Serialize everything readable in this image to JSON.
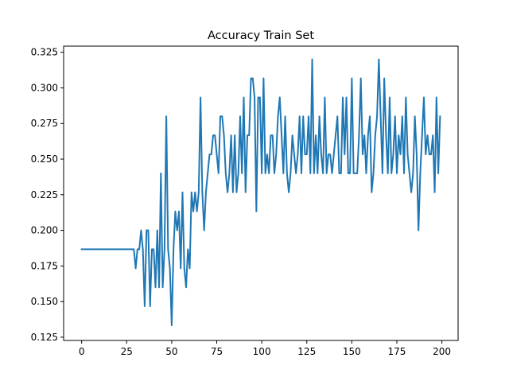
{
  "chart_data": {
    "type": "line",
    "title": "Accuracy Train Set",
    "xlabel": "",
    "ylabel": "",
    "xlim": [
      -10,
      209
    ],
    "ylim": [
      0.1227,
      0.3293
    ],
    "xticks": [
      0,
      25,
      50,
      75,
      100,
      125,
      150,
      175,
      200
    ],
    "yticks": [
      0.125,
      0.15,
      0.175,
      0.2,
      0.225,
      0.25,
      0.275,
      0.3,
      0.325
    ],
    "xtick_labels": [
      "0",
      "25",
      "50",
      "75",
      "100",
      "125",
      "150",
      "175",
      "200"
    ],
    "ytick_labels": [
      "0.125",
      "0.150",
      "0.175",
      "0.200",
      "0.225",
      "0.250",
      "0.275",
      "0.300",
      "0.325"
    ],
    "grid": false,
    "legend": "none",
    "line_color": "#1f77b4",
    "series": [
      {
        "x_start": 0,
        "x_step": 1,
        "values": [
          0.1867,
          0.1867,
          0.1867,
          0.1867,
          0.1867,
          0.1867,
          0.1867,
          0.1867,
          0.1867,
          0.1867,
          0.1867,
          0.1867,
          0.1867,
          0.1867,
          0.1867,
          0.1867,
          0.1867,
          0.1867,
          0.1867,
          0.1867,
          0.1867,
          0.1867,
          0.1867,
          0.1867,
          0.1867,
          0.1867,
          0.1867,
          0.1867,
          0.1867,
          0.1867,
          0.1733,
          0.1867,
          0.1867,
          0.2,
          0.1867,
          0.1467,
          0.2,
          0.2,
          0.1467,
          0.1867,
          0.1867,
          0.16,
          0.2,
          0.16,
          0.24,
          0.16,
          0.1867,
          0.28,
          0.1867,
          0.1733,
          0.1333,
          0.1867,
          0.2133,
          0.2,
          0.2133,
          0.1733,
          0.2267,
          0.1733,
          0.16,
          0.1867,
          0.1733,
          0.2267,
          0.2133,
          0.2267,
          0.2133,
          0.2267,
          0.2933,
          0.2267,
          0.2,
          0.2267,
          0.24,
          0.2533,
          0.2533,
          0.2667,
          0.2667,
          0.2533,
          0.24,
          0.28,
          0.28,
          0.2667,
          0.24,
          0.2267,
          0.24,
          0.2667,
          0.2267,
          0.2667,
          0.2267,
          0.24,
          0.28,
          0.24,
          0.2933,
          0.2267,
          0.2667,
          0.2667,
          0.3067,
          0.3067,
          0.2933,
          0.2133,
          0.2933,
          0.2933,
          0.24,
          0.3067,
          0.24,
          0.2533,
          0.24,
          0.2667,
          0.2667,
          0.24,
          0.2533,
          0.28,
          0.2933,
          0.2667,
          0.24,
          0.28,
          0.24,
          0.2267,
          0.24,
          0.2667,
          0.2533,
          0.24,
          0.2533,
          0.28,
          0.24,
          0.28,
          0.2533,
          0.2533,
          0.28,
          0.24,
          0.32,
          0.24,
          0.2667,
          0.24,
          0.28,
          0.2533,
          0.24,
          0.2933,
          0.24,
          0.2533,
          0.2533,
          0.24,
          0.2533,
          0.2667,
          0.28,
          0.24,
          0.24,
          0.2933,
          0.2533,
          0.2933,
          0.24,
          0.24,
          0.3067,
          0.24,
          0.24,
          0.24,
          0.2667,
          0.3067,
          0.2533,
          0.2667,
          0.24,
          0.2667,
          0.28,
          0.2267,
          0.24,
          0.2667,
          0.28,
          0.32,
          0.28,
          0.24,
          0.3067,
          0.2667,
          0.24,
          0.2933,
          0.24,
          0.2533,
          0.28,
          0.24,
          0.2667,
          0.2533,
          0.28,
          0.24,
          0.2933,
          0.2533,
          0.24,
          0.2267,
          0.24,
          0.28,
          0.2533,
          0.2,
          0.24,
          0.2667,
          0.2933,
          0.2533,
          0.2667,
          0.2533,
          0.2533,
          0.2667,
          0.2267,
          0.2933,
          0.24,
          0.28
        ]
      }
    ]
  }
}
